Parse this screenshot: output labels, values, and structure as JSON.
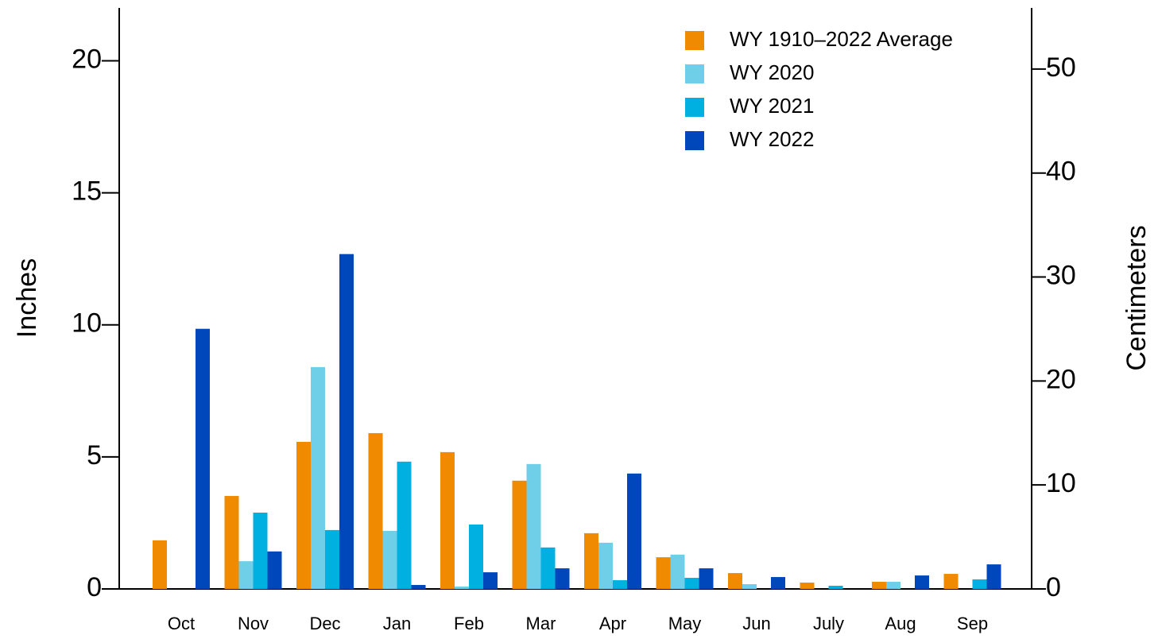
{
  "chart_data": {
    "type": "bar",
    "ylabel": "Inches",
    "y2label": "Centimeters",
    "categories": [
      "Oct",
      "Nov",
      "Dec",
      "Jan",
      "Feb",
      "Mar",
      "Apr",
      "May",
      "Jun",
      "July",
      "Aug",
      "Sep"
    ],
    "series": [
      {
        "name": "WY 1910–2022 Average",
        "color": "#f08a00",
        "values": [
          1.84,
          3.52,
          5.57,
          5.9,
          5.18,
          4.1,
          2.11,
          1.2,
          0.6,
          0.24,
          0.27,
          0.57
        ]
      },
      {
        "name": "WY 2020",
        "color": "#6fcfe8",
        "values": [
          0,
          1.05,
          8.4,
          2.2,
          0.09,
          4.73,
          1.75,
          1.3,
          0.18,
          0,
          0.27,
          0
        ]
      },
      {
        "name": "WY 2021",
        "color": "#00b0e0",
        "values": [
          0,
          2.89,
          2.23,
          4.82,
          2.44,
          1.57,
          0.33,
          0.42,
          0,
          0.12,
          0,
          0.36
        ]
      },
      {
        "name": "WY 2022",
        "color": "#0047bb",
        "values": [
          9.85,
          1.42,
          12.68,
          0.15,
          0.63,
          0.78,
          4.37,
          0.78,
          0.45,
          0,
          0.51,
          0.93
        ]
      }
    ],
    "ylim": [
      0,
      22
    ],
    "yticks": [
      0,
      5,
      10,
      15,
      20
    ],
    "y2lim": [
      0,
      55.88
    ],
    "y2ticks": [
      0,
      10,
      20,
      30,
      40,
      50
    ],
    "legend": "upper right",
    "grid": false
  }
}
